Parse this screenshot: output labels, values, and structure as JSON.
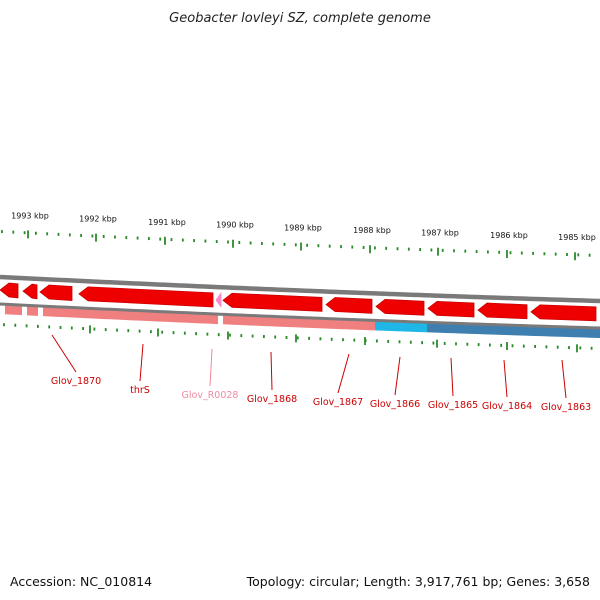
{
  "title": "Geobacter lovleyi SZ, complete genome",
  "footer": {
    "accession": "Accession: NC_010814",
    "summary": "Topology: circular; Length: 3,917,761 bp; Genes: 3,658"
  },
  "scale_labels": [
    "1993 kbp",
    "1992 kbp",
    "1991 kbp",
    "1990 kbp",
    "1989 kbp",
    "1988 kbp",
    "1987 kbp",
    "1986 kbp",
    "1985 kbp"
  ],
  "genes": [
    {
      "label": "Glov_1870",
      "color": "#cc0000"
    },
    {
      "label": "thrS",
      "color": "#cc0000"
    },
    {
      "label": "Glov_R0028",
      "color": "#f08aa0"
    },
    {
      "label": "Glov_1868",
      "color": "#cc0000"
    },
    {
      "label": "Glov_1867",
      "color": "#cc0000"
    },
    {
      "label": "Glov_1866",
      "color": "#cc0000"
    },
    {
      "label": "Glov_1865",
      "color": "#cc0000"
    },
    {
      "label": "Glov_1864",
      "color": "#cc0000"
    },
    {
      "label": "Glov_1863",
      "color": "#cc0000"
    }
  ],
  "colors": {
    "backbone": "#7a7a7a",
    "cds_feature": "#ee0000",
    "rna_feature": "#ff88c8",
    "inner_track": "#f08080",
    "inner_track_cyan": "#1fb6e8",
    "inner_track_blue": "#3f7fb0",
    "tick": "#2a8a2a"
  }
}
